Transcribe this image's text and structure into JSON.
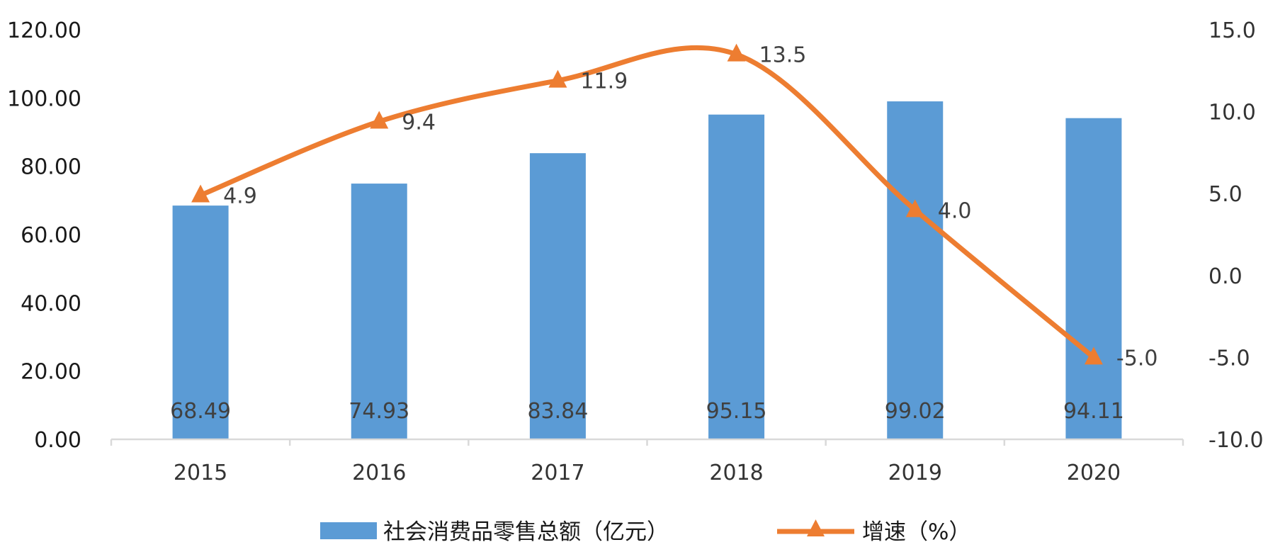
{
  "chart_data": {
    "type": "bar",
    "categories": [
      "2015",
      "2016",
      "2017",
      "2018",
      "2019",
      "2020"
    ],
    "series": [
      {
        "name": "社会消费品零售总额（亿元）",
        "type": "bar",
        "axis": "left",
        "color": "#5b9bd5",
        "values": [
          68.49,
          74.93,
          83.84,
          95.15,
          99.02,
          94.11
        ],
        "labels": [
          "68.49",
          "74.93",
          "83.84",
          "95.15",
          "99.02",
          "94.11"
        ]
      },
      {
        "name": "增速（%）",
        "type": "line",
        "axis": "right",
        "marker": "triangle",
        "smooth": true,
        "color": "#ed7d31",
        "values": [
          4.9,
          9.4,
          11.9,
          13.5,
          4.0,
          -5.0
        ],
        "labels": [
          "4.9",
          "9.4",
          "11.9",
          "13.5",
          "4.0",
          "-5.0"
        ]
      }
    ],
    "y_left": {
      "ylim": [
        0,
        120
      ],
      "ticks": [
        "0.00",
        "20.00",
        "40.00",
        "60.00",
        "80.00",
        "100.00",
        "120.00"
      ]
    },
    "y_right": {
      "ylim": [
        -10,
        15
      ],
      "ticks": [
        "-10.0",
        "-5.0",
        "0.0",
        "5.0",
        "10.0",
        "15.0"
      ]
    },
    "grid": false,
    "legend_position": "bottom"
  }
}
